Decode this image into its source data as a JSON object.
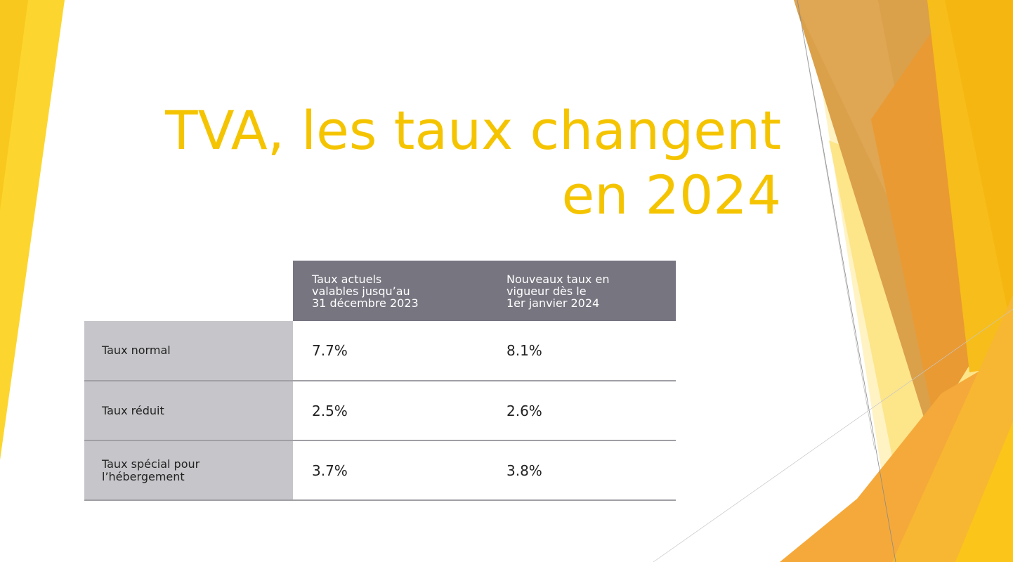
{
  "slide": {
    "title_lines": [
      "TVA, les taux changent",
      "en 2024"
    ],
    "accent_color": "#f5c400"
  },
  "table": {
    "header_color": "#767580",
    "label_column_color": "#c6c6ca",
    "columns": [
      {
        "lines": [
          "Taux actuels",
          "valables jusqu’au",
          "31 décembre 2023"
        ]
      },
      {
        "lines": [
          "Nouveaux taux en",
          "vigueur dès le",
          "1er janvier 2024"
        ]
      }
    ],
    "rows": [
      {
        "label_lines": [
          "Taux normal"
        ],
        "current": "7.7%",
        "new": "8.1%"
      },
      {
        "label_lines": [
          "Taux réduit"
        ],
        "current": "2.5%",
        "new": "2.6%"
      },
      {
        "label_lines": [
          "Taux spécial pour",
          "l’hébergement"
        ],
        "current": "3.7%",
        "new": "3.8%"
      }
    ]
  }
}
